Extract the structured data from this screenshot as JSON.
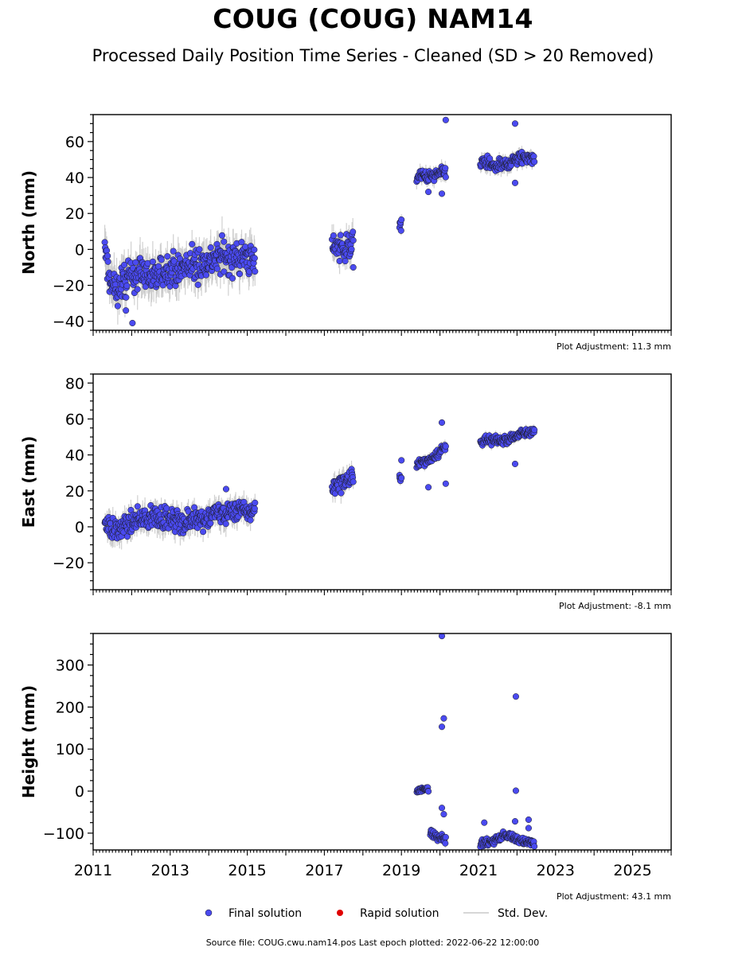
{
  "title": "COUG (COUG) NAM14",
  "subtitle": "Processed Daily Position Time Series - Cleaned (SD > 20 Removed)",
  "source_line": "Source file: COUG.cwu.nam14.pos  Last epoch plotted: 2022-06-22 12:00:00",
  "colors": {
    "final": "#4a4af0",
    "rapid": "#e00000",
    "stddev": "#c8c8c8",
    "edge": "#1a1a1a"
  },
  "legend": [
    {
      "label": "Final solution",
      "kind": "final"
    },
    {
      "label": "Rapid solution",
      "kind": "rapid"
    },
    {
      "label": "Std. Dev.",
      "kind": "stddev"
    }
  ],
  "chart_data": [
    {
      "type": "scatter",
      "ylabel": "North (mm)",
      "xlim": [
        2011,
        2026
      ],
      "ylim": [
        -45,
        75
      ],
      "yticks": [
        -40,
        -20,
        0,
        20,
        40,
        60
      ],
      "xticks": [
        "2011",
        "2013",
        "2015",
        "2017",
        "2019",
        "2021",
        "2023",
        "2025"
      ],
      "show_x_tick_labels": false,
      "adjustment": "Plot Adjustment: 11.3 mm",
      "segments": [
        {
          "x": [
            2011.3,
            2011.45,
            2011.6,
            2011.8,
            2012.0,
            2012.2,
            2012.4,
            2012.6,
            2012.8,
            2013.0,
            2013.2,
            2013.4,
            2013.6,
            2013.8,
            2014.0,
            2014.2,
            2014.4,
            2014.6,
            2014.8,
            2015.0,
            2015.2
          ],
          "y": [
            0,
            -20,
            -22,
            -18,
            -15,
            -12,
            -14,
            -16,
            -13,
            -10,
            -12,
            -10,
            -9,
            -8,
            -6,
            -5,
            -3,
            -6,
            -4,
            -5,
            -6
          ],
          "spread": 8
        },
        {
          "x": [
            2017.2,
            2017.35,
            2017.5,
            2017.65,
            2017.75
          ],
          "y": [
            2,
            1,
            0,
            2,
            3
          ],
          "spread": 6
        },
        {
          "x": [
            2018.95,
            2019.0
          ],
          "y": [
            12,
            14
          ],
          "spread": 3
        },
        {
          "x": [
            2019.4,
            2019.55,
            2019.7,
            2019.85,
            2020.0,
            2020.15
          ],
          "y": [
            40,
            41,
            40,
            41,
            42,
            43
          ],
          "spread": 3
        },
        {
          "x": [
            2021.05,
            2021.2,
            2021.4,
            2021.6,
            2021.8,
            2022.0,
            2022.2,
            2022.45
          ],
          "y": [
            49,
            48,
            46,
            47,
            48,
            50,
            51,
            50
          ],
          "spread": 3
        }
      ],
      "outliers": [
        {
          "x": 2020.15,
          "y": 72
        },
        {
          "x": 2021.95,
          "y": 70
        },
        {
          "x": 2012.02,
          "y": -41
        },
        {
          "x": 2017.75,
          "y": -10
        },
        {
          "x": 2019.7,
          "y": 32
        },
        {
          "x": 2020.05,
          "y": 31
        },
        {
          "x": 2021.95,
          "y": 37
        },
        {
          "x": 2011.85,
          "y": -34
        }
      ]
    },
    {
      "type": "scatter",
      "ylabel": "East (mm)",
      "xlim": [
        2011,
        2026
      ],
      "ylim": [
        -35,
        85
      ],
      "yticks": [
        -20,
        0,
        20,
        40,
        60,
        80
      ],
      "xticks": [
        "2011",
        "2013",
        "2015",
        "2017",
        "2019",
        "2021",
        "2023",
        "2025"
      ],
      "show_x_tick_labels": false,
      "adjustment": "Plot Adjustment: -8.1 mm",
      "segments": [
        {
          "x": [
            2011.3,
            2011.45,
            2011.6,
            2011.8,
            2012.0,
            2012.2,
            2012.4,
            2012.6,
            2012.8,
            2013.0,
            2013.2,
            2013.4,
            2013.6,
            2013.8,
            2014.0,
            2014.2,
            2014.4,
            2014.6,
            2014.8,
            2015.0,
            2015.2
          ],
          "y": [
            3,
            0,
            -3,
            0,
            2,
            5,
            4,
            6,
            5,
            3,
            4,
            2,
            5,
            4,
            6,
            8,
            7,
            9,
            10,
            8,
            10
          ],
          "spread": 5
        },
        {
          "x": [
            2017.2,
            2017.35,
            2017.5,
            2017.65,
            2017.75
          ],
          "y": [
            22,
            24,
            25,
            26,
            27
          ],
          "spread": 4
        },
        {
          "x": [
            2018.95,
            2019.0
          ],
          "y": [
            26,
            28
          ],
          "spread": 2
        },
        {
          "x": [
            2019.4,
            2019.55,
            2019.7,
            2019.85,
            2020.0,
            2020.15
          ],
          "y": [
            35,
            36,
            37,
            39,
            42,
            45
          ],
          "spread": 2
        },
        {
          "x": [
            2021.05,
            2021.2,
            2021.4,
            2021.6,
            2021.8,
            2022.0,
            2022.2,
            2022.45
          ],
          "y": [
            47,
            48,
            48,
            48,
            49,
            51,
            52,
            54
          ],
          "spread": 2
        }
      ],
      "outliers": [
        {
          "x": 2020.05,
          "y": 58
        },
        {
          "x": 2019.7,
          "y": 22
        },
        {
          "x": 2020.15,
          "y": 24
        },
        {
          "x": 2021.95,
          "y": 35
        },
        {
          "x": 2019.0,
          "y": 37
        },
        {
          "x": 2014.45,
          "y": 21
        }
      ]
    },
    {
      "type": "scatter",
      "ylabel": "Height (mm)",
      "xlim": [
        2011,
        2026
      ],
      "ylim": [
        -140,
        375
      ],
      "yticks": [
        -100,
        0,
        100,
        200,
        300
      ],
      "xticks": [
        "2011",
        "2013",
        "2015",
        "2017",
        "2019",
        "2021",
        "2023",
        "2025"
      ],
      "show_x_tick_labels": true,
      "adjustment": "Plot Adjustment: 43.1 mm",
      "segments": [
        {
          "x": [
            2019.4,
            2019.55,
            2019.7
          ],
          "y": [
            0,
            3,
            5
          ],
          "spread": 6
        },
        {
          "x": [
            2019.75,
            2019.9,
            2020.05,
            2020.15
          ],
          "y": [
            -100,
            -105,
            -110,
            -115
          ],
          "spread": 8
        },
        {
          "x": [
            2021.05,
            2021.3,
            2021.55,
            2021.8,
            2022.0,
            2022.2,
            2022.45
          ],
          "y": [
            -125,
            -120,
            -110,
            -105,
            -115,
            -120,
            -125
          ],
          "spread": 8
        }
      ],
      "outliers": [
        {
          "x": 2020.05,
          "y": 369
        },
        {
          "x": 2021.97,
          "y": 225
        },
        {
          "x": 2020.1,
          "y": 173
        },
        {
          "x": 2020.05,
          "y": 153
        },
        {
          "x": 2021.97,
          "y": 1
        },
        {
          "x": 2020.05,
          "y": -40
        },
        {
          "x": 2020.1,
          "y": -55
        },
        {
          "x": 2021.15,
          "y": -75
        },
        {
          "x": 2022.3,
          "y": -68
        },
        {
          "x": 2021.95,
          "y": -72
        },
        {
          "x": 2022.3,
          "y": -88
        }
      ]
    }
  ]
}
